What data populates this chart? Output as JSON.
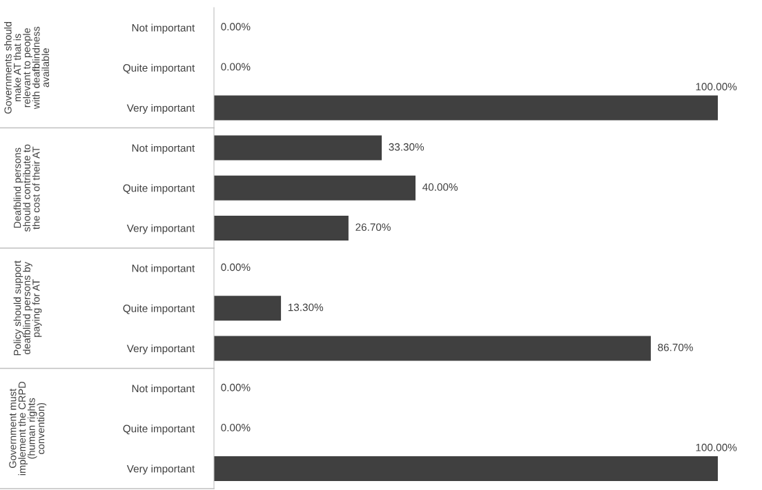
{
  "chart_data": {
    "type": "bar",
    "orientation": "horizontal",
    "categories": [
      "Not important",
      "Quite important",
      "Very important",
      "Not important",
      "Quite important",
      "Very important",
      "Not important",
      "Quite important",
      "Very important",
      "Not important",
      "Quite important",
      "Very important"
    ],
    "values": [
      0,
      0,
      100,
      33.3,
      40,
      26.7,
      0,
      13.3,
      86.7,
      0,
      0,
      100
    ],
    "value_labels": [
      "0.00%",
      "0.00%",
      "100.00%",
      "33.30%",
      "40.00%",
      "26.70%",
      "0.00%",
      "13.30%",
      "86.70%",
      "0.00%",
      "0.00%",
      "100.00%"
    ],
    "color": "#404040",
    "xlim": [
      0,
      100
    ],
    "annotations": [
      "Governments should\nmake AT that is\nrelevant to people\nwith deafblindness\navailable",
      "Deafblind persons\nshould contribute to\nthe cost of their AT",
      "Policy should support\ndeafblind persons by\npaying for AT",
      "Government must\nimplement the CRPD\n(human rights\nconvention)"
    ],
    "grid": false,
    "legend": false
  }
}
